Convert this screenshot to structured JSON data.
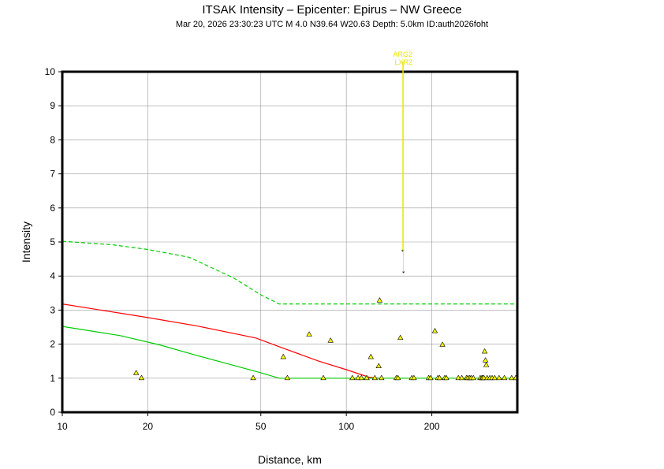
{
  "chart_data": {
    "type": "scatter",
    "title": "ITSAK Intensity –  Epicenter: Epirus – NW Greece",
    "subtitle": "Mar 20, 2026 23:30:23 UTC   M 4.0   N39.64 W20.63   Depth: 5.0km   ID:auth2026foht",
    "xlabel": "Distance, km",
    "ylabel": "Intensity",
    "x_scale": "log",
    "xlim": [
      10,
      400
    ],
    "ylim": [
      0,
      10
    ],
    "x_ticks": [
      10,
      20,
      50,
      100,
      200
    ],
    "y_ticks": [
      0,
      1,
      2,
      3,
      4,
      5,
      6,
      7,
      8,
      9,
      10
    ],
    "grid": true,
    "colors": {
      "station_fill": "#ffff00",
      "station_edge": "#000000",
      "prediction": "#ff0000",
      "bounds": "#00cc00",
      "annotation": "#e6e600",
      "grid": "#999999"
    },
    "series": [
      {
        "role": "prediction",
        "style": "solid-red",
        "x": [
          10,
          20,
          30,
          48,
          60,
          80,
          100,
          120,
          130
        ],
        "y": [
          3.18,
          2.78,
          2.53,
          2.18,
          1.88,
          1.5,
          1.25,
          1.03,
          1.0
        ]
      },
      {
        "role": "lower-bound",
        "style": "solid-green",
        "x": [
          10,
          16,
          22,
          30,
          40,
          50,
          58,
          100,
          400
        ],
        "y": [
          2.52,
          2.25,
          1.98,
          1.66,
          1.38,
          1.16,
          1.0,
          1.0,
          1.0
        ]
      },
      {
        "role": "upper-bound",
        "style": "dashed-green",
        "x": [
          10,
          15,
          20,
          28,
          40,
          50,
          58,
          100,
          400
        ],
        "y": [
          5.02,
          4.92,
          4.78,
          4.55,
          3.95,
          3.45,
          3.18,
          3.18,
          3.18
        ]
      },
      {
        "role": "stations",
        "style": "yellow-triangle",
        "x": [
          18.2,
          19,
          47,
          60,
          62,
          74,
          83,
          88,
          105,
          110,
          113,
          118,
          122,
          126,
          130,
          131,
          133,
          150,
          152,
          155,
          170,
          173,
          195,
          198,
          205,
          210,
          213,
          218,
          222,
          225,
          248,
          255,
          265,
          268,
          272,
          275,
          280,
          296,
          300,
          302,
          305,
          307,
          309,
          311,
          313,
          320,
          326,
          333,
          345,
          360,
          382,
          395
        ],
        "y": [
          1.15,
          1.0,
          1.0,
          1.62,
          1.0,
          2.28,
          1.0,
          2.1,
          1.0,
          1.0,
          1.0,
          1.0,
          1.62,
          1.0,
          1.35,
          3.28,
          1.0,
          1.0,
          1.0,
          2.18,
          1.0,
          1.0,
          1.0,
          1.0,
          2.38,
          1.0,
          1.0,
          1.98,
          1.0,
          1.0,
          1.0,
          1.0,
          1.0,
          1.0,
          1.0,
          1.0,
          1.0,
          1.0,
          1.0,
          1.0,
          1.0,
          1.78,
          1.52,
          1.38,
          1.0,
          1.0,
          1.0,
          1.0,
          1.0,
          1.0,
          1.0,
          1.0
        ]
      },
      {
        "role": "flagged",
        "style": "plus",
        "x": [
          158,
          159
        ],
        "y": [
          4.75,
          4.12
        ]
      }
    ],
    "annotations": [
      {
        "text": "ARG2",
        "x": 158
      },
      {
        "text": "LXR2",
        "x": 159
      }
    ]
  }
}
